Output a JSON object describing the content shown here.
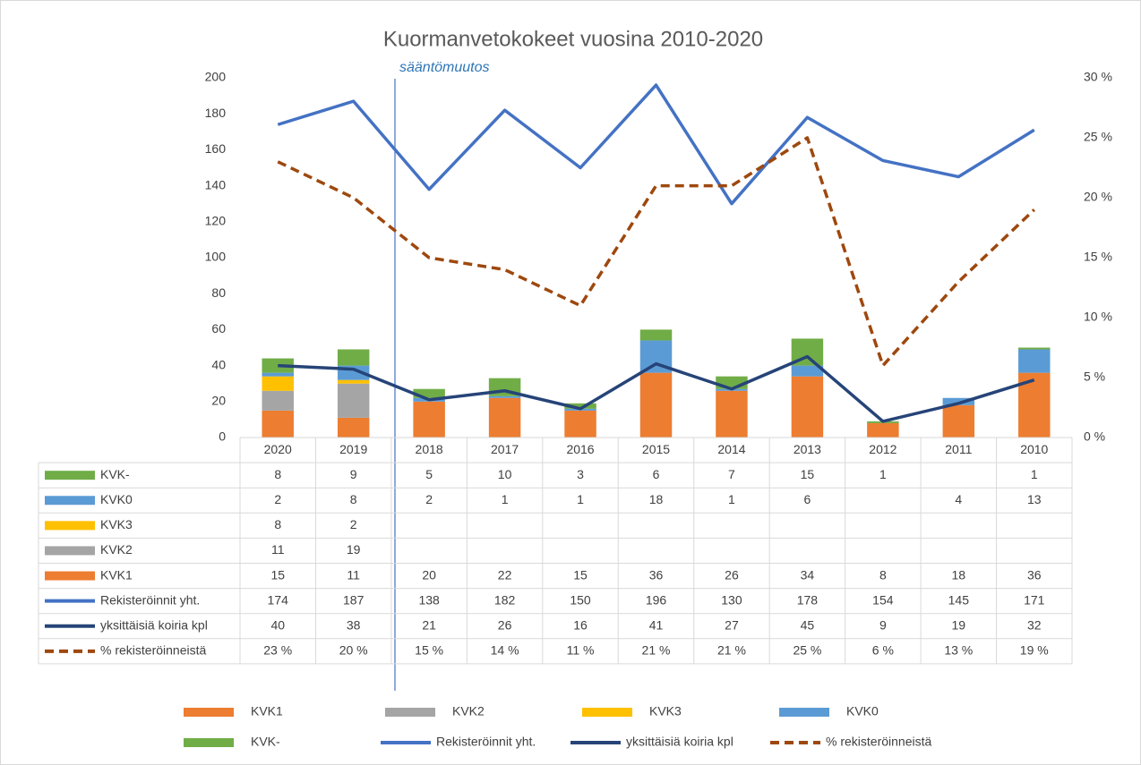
{
  "chart_data": {
    "type": "bar",
    "title": "Kuormanvetokokeet vuosina 2010-2020",
    "categories": [
      "2020",
      "2019",
      "2018",
      "2017",
      "2016",
      "2015",
      "2014",
      "2013",
      "2012",
      "2011",
      "2010"
    ],
    "series": [
      {
        "name": "KVK1",
        "type": "bar",
        "color": "#ED7D31",
        "values": [
          15,
          11,
          20,
          22,
          15,
          36,
          26,
          34,
          8,
          18,
          36
        ]
      },
      {
        "name": "KVK2",
        "type": "bar",
        "color": "#A5A5A5",
        "values": [
          11,
          19,
          null,
          null,
          null,
          null,
          null,
          null,
          null,
          null,
          null
        ]
      },
      {
        "name": "KVK3",
        "type": "bar",
        "color": "#FFC000",
        "values": [
          8,
          2,
          null,
          null,
          null,
          null,
          null,
          null,
          null,
          null,
          null
        ]
      },
      {
        "name": "KVK0",
        "type": "bar",
        "color": "#5B9BD5",
        "values": [
          2,
          8,
          2,
          1,
          1,
          18,
          1,
          6,
          null,
          4,
          13
        ]
      },
      {
        "name": "KVK-",
        "type": "bar",
        "color": "#70AD47",
        "values": [
          8,
          9,
          5,
          10,
          3,
          6,
          7,
          15,
          1,
          null,
          1
        ]
      },
      {
        "name": "Rekisteröinnit yht.",
        "type": "line",
        "color": "#4472C4",
        "values": [
          174,
          187,
          138,
          182,
          150,
          196,
          130,
          178,
          154,
          145,
          171
        ]
      },
      {
        "name": "yksittäisiä koiria kpl",
        "type": "line",
        "color": "#264478",
        "values": [
          40,
          38,
          21,
          26,
          16,
          41,
          27,
          45,
          9,
          19,
          32
        ]
      },
      {
        "name": "% rekisteröinneistä",
        "type": "line",
        "dashed": true,
        "axis": "y2",
        "color": "#9E480E",
        "values": [
          23,
          20,
          15,
          14,
          11,
          21,
          21,
          25,
          6,
          13,
          19
        ],
        "value_labels": [
          "23 %",
          "20 %",
          "15 %",
          "14 %",
          "11 %",
          "21 %",
          "21 %",
          "25 %",
          "6 %",
          "13 %",
          "19 %"
        ]
      }
    ],
    "ylim": [
      0,
      200
    ],
    "yticks": [
      0,
      20,
      40,
      60,
      80,
      100,
      120,
      140,
      160,
      180,
      200
    ],
    "y2lim": [
      0,
      30
    ],
    "y2ticks": [
      {
        "value": 0,
        "label": "0 %"
      },
      {
        "value": 5,
        "label": "5 %"
      },
      {
        "value": 10,
        "label": "10 %"
      },
      {
        "value": 15,
        "label": "15 %"
      },
      {
        "value": 20,
        "label": "20 %"
      },
      {
        "value": 25,
        "label": "25 %"
      },
      {
        "value": 30,
        "label": "30 %"
      }
    ],
    "annotation": "sääntömuutos"
  }
}
